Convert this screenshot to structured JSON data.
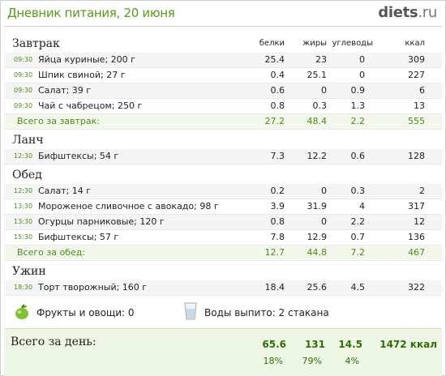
{
  "header": {
    "title": "Дневник питания, 20 июня",
    "brand": "diets",
    "brand_tld": ".ru"
  },
  "columns": {
    "protein": "белки",
    "fat": "жиры",
    "carbs": "углеводы",
    "kcal": "ккал"
  },
  "meals": [
    {
      "name": "Завтрак",
      "rows": [
        {
          "time": "09:30",
          "food": "Яйца куриные; 200 г",
          "protein": "25.4",
          "fat": "23",
          "carbs": "0",
          "kcal": "309"
        },
        {
          "time": "09:30",
          "food": "Шпик свиной; 27 г",
          "protein": "0.4",
          "fat": "25.1",
          "carbs": "0",
          "kcal": "227"
        },
        {
          "time": "09:30",
          "food": "Салат; 39 г",
          "protein": "0.6",
          "fat": "0",
          "carbs": "0.9",
          "kcal": "6"
        },
        {
          "time": "09:30",
          "food": "Чай с чабрецом; 250 г",
          "protein": "0.8",
          "fat": "0.3",
          "carbs": "1.3",
          "kcal": "13"
        }
      ],
      "total": {
        "label": "Всего за завтрак:",
        "protein": "27.2",
        "fat": "48.4",
        "carbs": "2.2",
        "kcal": "555"
      }
    },
    {
      "name": "Ланч",
      "rows": [
        {
          "time": "12:30",
          "food": "Бифштексы; 54 г",
          "protein": "7.3",
          "fat": "12.2",
          "carbs": "0.6",
          "kcal": "128"
        }
      ]
    },
    {
      "name": "Обед",
      "rows": [
        {
          "time": "12:30",
          "food": "Салат; 14 г",
          "protein": "0.2",
          "fat": "0",
          "carbs": "0.3",
          "kcal": "2"
        },
        {
          "time": "13:30",
          "food": "Мороженое сливочное с авокадо; 98 г",
          "protein": "3.9",
          "fat": "31.9",
          "carbs": "4",
          "kcal": "317"
        },
        {
          "time": "13:30",
          "food": "Огурцы парниковые; 120 г",
          "protein": "0.8",
          "fat": "0",
          "carbs": "2.2",
          "kcal": "12"
        },
        {
          "time": "15:30",
          "food": "Бифштексы; 57 г",
          "protein": "7.8",
          "fat": "12.9",
          "carbs": "0.7",
          "kcal": "136"
        }
      ],
      "total": {
        "label": "Всего за обед:",
        "protein": "12.7",
        "fat": "44.8",
        "carbs": "7.2",
        "kcal": "467"
      }
    },
    {
      "name": "Ужин",
      "rows": [
        {
          "time": "18:30",
          "food": "Торт творожный; 160 г",
          "protein": "18.4",
          "fat": "25.6",
          "carbs": "4.5",
          "kcal": "322"
        }
      ]
    }
  ],
  "extras": {
    "fruits_label": "Фрукты и овощи: 0",
    "water_label": "Воды выпито: 2 стакана"
  },
  "day_total": {
    "label": "Всего за день:",
    "protein": "65.6",
    "fat": "131",
    "carbs": "14.5",
    "kcal": "1472 ккал",
    "protein_pct": "18%",
    "fat_pct": "79%",
    "carbs_pct": "4%"
  },
  "colors": {
    "accent": "#4c8a16",
    "title": "#5a9a1b",
    "total_bg": "#eef7e6"
  }
}
